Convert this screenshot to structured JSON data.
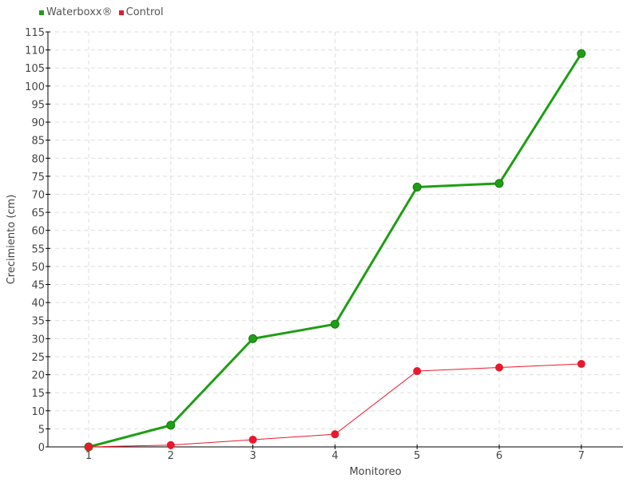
{
  "chart_data": {
    "type": "line",
    "xlabel": "Monitoreo",
    "ylabel": "Crecimiento (cm)",
    "x": [
      1,
      2,
      3,
      4,
      5,
      6,
      7
    ],
    "ylim": [
      0,
      115
    ],
    "yticks": [
      0,
      5,
      10,
      15,
      20,
      25,
      30,
      35,
      40,
      45,
      50,
      55,
      60,
      65,
      70,
      75,
      80,
      85,
      90,
      95,
      100,
      105,
      110,
      115
    ],
    "grid": true,
    "legend_position": "top-left",
    "series": [
      {
        "name": "Waterboxx®",
        "color": "#1e9e14",
        "values": [
          0,
          6,
          30,
          34,
          72,
          73,
          109
        ]
      },
      {
        "name": "Control",
        "color": "#e8192c",
        "values": [
          0,
          0.5,
          2,
          3.5,
          21,
          22,
          23
        ]
      }
    ]
  }
}
